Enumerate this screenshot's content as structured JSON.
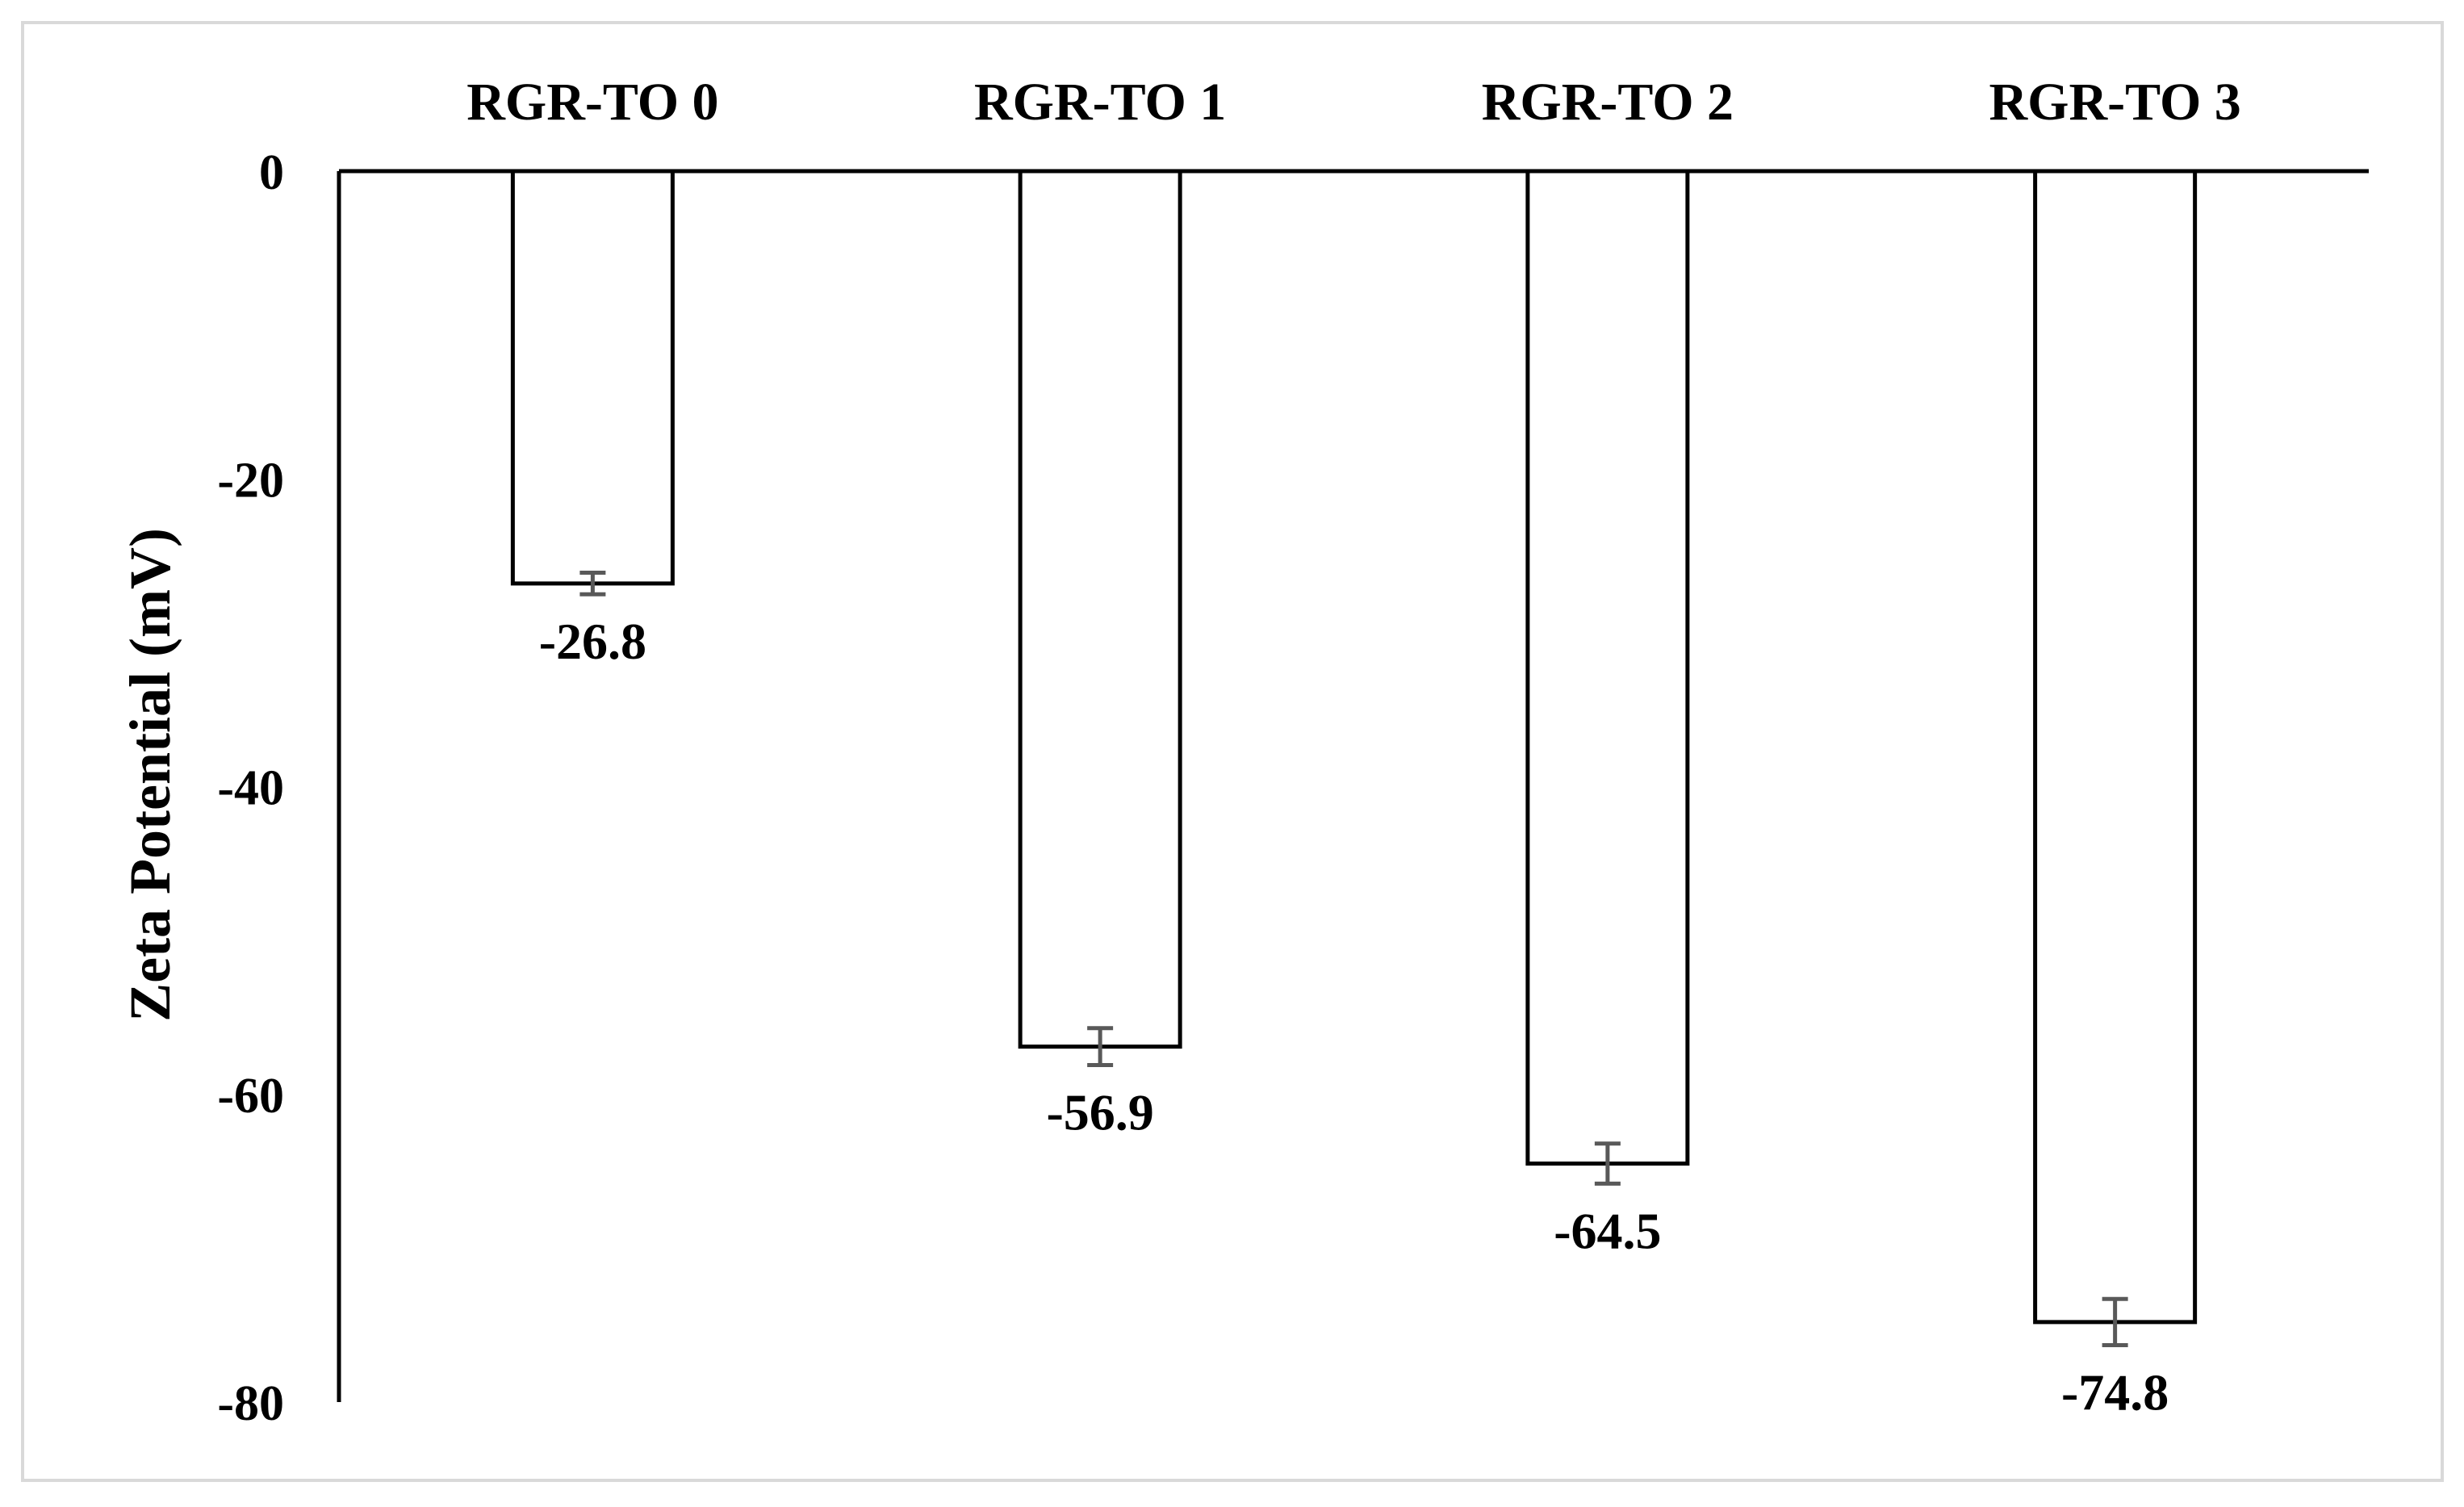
{
  "chart_data": {
    "type": "bar",
    "categories": [
      "RGR-TO 0",
      "RGR-TO 1",
      "RGR-TO 2",
      "RGR-TO 3"
    ],
    "values": [
      -26.8,
      -56.9,
      -64.5,
      -74.8
    ],
    "error": [
      0.7,
      1.2,
      1.3,
      1.5
    ],
    "data_labels": [
      "-26.8",
      "-56.9",
      "-64.5",
      "-74.8"
    ],
    "ylabel": "Zeta Potential (mV)",
    "xlabel": "",
    "ylim": [
      -80,
      0
    ],
    "yticks": [
      0,
      -20,
      -40,
      -60,
      -80
    ],
    "ytick_labels": [
      "0",
      "-20",
      "-40",
      "-60",
      "-80"
    ],
    "category_axis_position": "top",
    "grid": false,
    "legend": "none",
    "colors": {
      "bar_fill": "#ffffff",
      "bar_stroke": "#000000",
      "error_bar": "#595959",
      "frame": "#d9d9d9"
    }
  }
}
